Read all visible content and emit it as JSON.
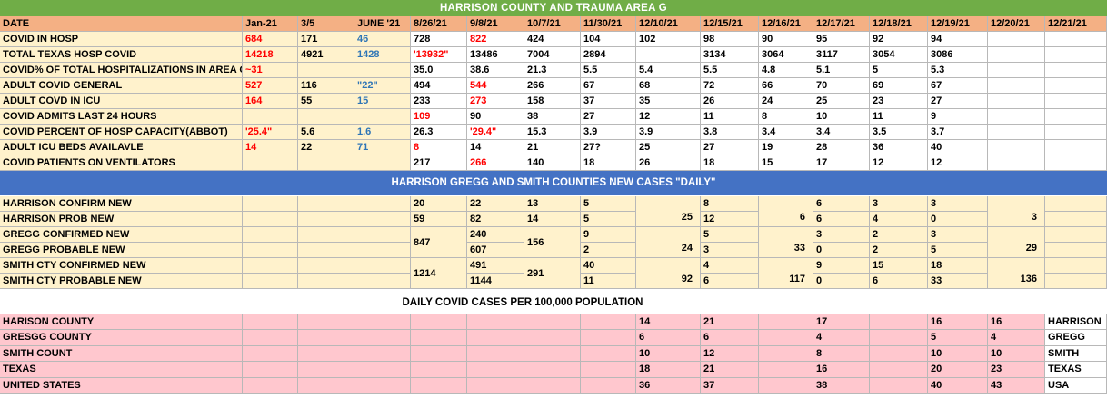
{
  "title": "HARRISON COUNTY  AND  TRAUMA AREA G",
  "colors": {
    "title_bg": "#70ad47",
    "header_bg": "#f4b084",
    "band_bg": "#4472c4",
    "yellow": "#fff2cc",
    "pink": "#ffc7ce",
    "red_text": "#ff0000",
    "blue_text": "#2e75b6"
  },
  "headers": [
    "DATE",
    "Jan-21",
    "3/5",
    "JUNE '21",
    "8/26/21",
    "9/8/21",
    "10/7/21",
    "11/30/21",
    "12/10/21",
    "12/15/21",
    "12/16/21",
    "12/17/21",
    "12/18/21",
    "12/19/21",
    "12/20/21",
    "12/21/21"
  ],
  "section1_rows": [
    {
      "label": "COVID IN HOSP",
      "cells": [
        "684",
        "171",
        "46",
        "728",
        "822",
        "424",
        "104",
        "102",
        "98",
        "90",
        "95",
        "92",
        "94",
        "",
        ""
      ]
    },
    {
      "label": "TOTAL TEXAS HOSP COVID",
      "cells": [
        "14218",
        "4921",
        "1428",
        "'13932\"",
        "13486",
        "7004",
        "2894",
        "",
        "3134",
        "3064",
        "3117",
        "3054",
        "3086",
        "",
        ""
      ]
    },
    {
      "label": "COVID% OF TOTAL HOSPITALIZATIONS IN AREA G",
      "cells": [
        "~31",
        "",
        "",
        "35.0",
        "38.6",
        "21.3",
        "5.5",
        "5.4",
        "5.5",
        "4.8",
        "5.1",
        "5",
        "5.3",
        "",
        ""
      ]
    },
    {
      "label": "ADULT COVID GENERAL",
      "cells": [
        "527",
        "116",
        "\"22\"",
        "494",
        "544",
        "266",
        "67",
        "68",
        "72",
        "66",
        "70",
        "69",
        "67",
        "",
        ""
      ]
    },
    {
      "label": "ADULT COVD IN ICU",
      "cells": [
        "164",
        "55",
        "15",
        "233",
        "273",
        "158",
        "37",
        "35",
        "26",
        "24",
        "25",
        "23",
        "27",
        "",
        ""
      ]
    },
    {
      "label": "COVID ADMITS LAST 24 HOURS",
      "cells": [
        "",
        "",
        "",
        "109",
        "90",
        "38",
        "27",
        "12",
        "11",
        "8",
        "10",
        "11",
        "9",
        "",
        ""
      ]
    },
    {
      "label": "COVID PERCENT OF HOSP  CAPACITY(ABBOT)",
      "cells": [
        "'25.4\"",
        "5.6",
        "1.6",
        "26.3",
        "'29.4\"",
        "15.3",
        "3.9",
        "3.9",
        "3.8",
        "3.4",
        "3.4",
        "3.5",
        "3.7",
        "",
        ""
      ]
    },
    {
      "label": "ADULT ICU BEDS AVAILAVLE",
      "cells": [
        "14",
        "22",
        "71",
        "8",
        "14",
        "21",
        "27?",
        "25",
        "27",
        "19",
        "28",
        "36",
        "40",
        "",
        ""
      ]
    },
    {
      "label": "COVID PATIENTS ON VENTILATORS",
      "cells": [
        "",
        "",
        "",
        "217",
        "266",
        "140",
        "18",
        "26",
        "18",
        "15",
        "17",
        "12",
        "12",
        "",
        ""
      ]
    }
  ],
  "band2_title": "HARRISON GREGG AND SMITH COUNTIES NEW CASES \"DAILY\"",
  "section2": {
    "labels": [
      "HARRISON CONFIRM NEW",
      "HARRISON PROB NEW",
      "GREGG CONFIRMED NEW",
      "GREGG PROBABLE NEW",
      "SMITH  CTY CONFIRMED NEW",
      "SMITH  CTY PROBABLE NEW"
    ],
    "c826": [
      "20",
      "59",
      "",
      "847",
      "",
      "1214",
      ""
    ],
    "c98": [
      "22",
      "82",
      "240",
      "607",
      "491",
      "1144"
    ],
    "c107": [
      "13",
      "14",
      "",
      "156",
      "",
      "291",
      ""
    ],
    "c1130": [
      "5",
      "5",
      "9",
      "2",
      "40",
      "11"
    ],
    "c1210": [
      "",
      "25",
      "",
      "24",
      "",
      "92"
    ],
    "c1215": [
      "8",
      "12",
      "5",
      "3",
      "4",
      "6"
    ],
    "c1216": [
      "6",
      "6",
      "",
      "33",
      "",
      "117"
    ],
    "c1217": [
      "6",
      "6",
      "3",
      "0",
      "9",
      "0"
    ],
    "c1218": [
      "3",
      "4",
      "2",
      "2",
      "15",
      "6"
    ],
    "c1219": [
      "3",
      "0",
      "3",
      "5",
      "18",
      "33"
    ],
    "c1220": [
      "3",
      "3",
      "",
      "29",
      "",
      "136"
    ],
    "merged": {
      "gregg_826": "847",
      "smith_826": "1214",
      "gregg_107": "156",
      "smith_107": "291"
    }
  },
  "band3_title": "DAILY COVID CASES PER 100,000 POPULATION",
  "section3_rows": [
    {
      "label": "HARISON COUNTY",
      "c1210": "14",
      "c1215": "21",
      "c1217": "17",
      "c1219": "16",
      "c1220": "16",
      "name": "HARRISON"
    },
    {
      "label": "GRESGG COUNTY",
      "c1210": "6",
      "c1215": "6",
      "c1217": "4",
      "c1219": "5",
      "c1220": "4",
      "name": "GREGG"
    },
    {
      "label": "SMITH COUNT",
      "c1210": "10",
      "c1215": "12",
      "c1217": "8",
      "c1219": "10",
      "c1220": "10",
      "name": "SMITH"
    },
    {
      "label": "TEXAS",
      "c1210": "18",
      "c1215": "21",
      "c1217": "16",
      "c1219": "20",
      "c1220": "23",
      "name": "TEXAS"
    },
    {
      "label": "UNITED STATES",
      "c1210": "36",
      "c1215": "37",
      "c1217": "38",
      "c1219": "40",
      "c1220": "43",
      "name": "USA"
    }
  ]
}
